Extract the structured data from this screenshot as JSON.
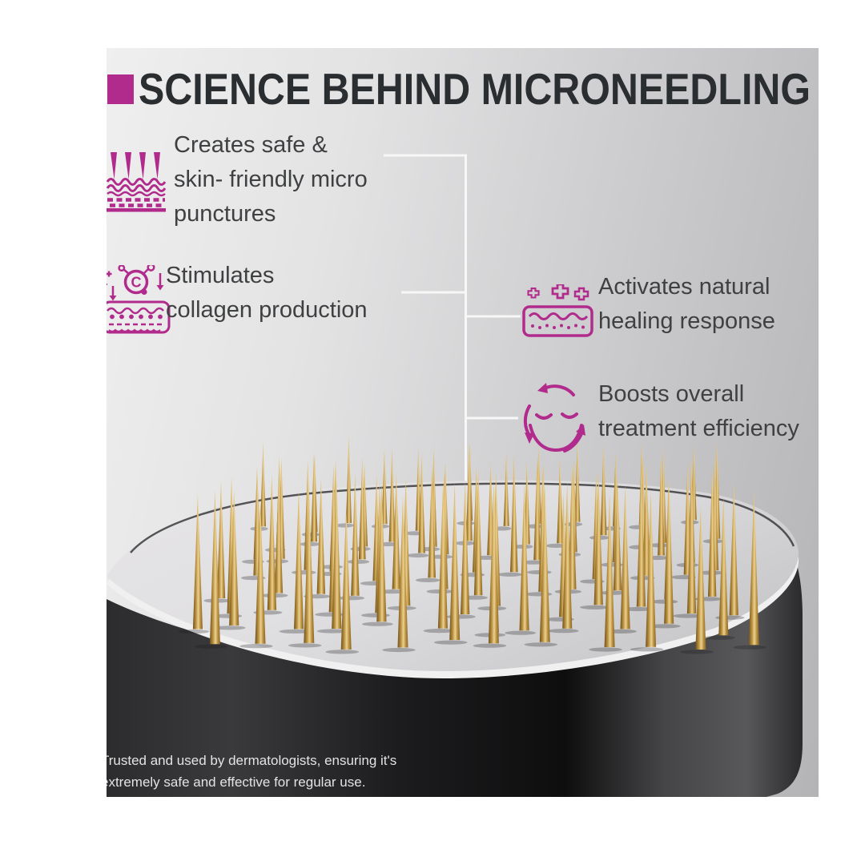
{
  "title": {
    "text": "SCIENCE BEHIND MICRONEEDLING"
  },
  "features": [
    {
      "icon": "microneedle-punctures-icon",
      "lines": [
        "Creates safe &",
        "skin- friendly micro",
        "punctures"
      ]
    },
    {
      "icon": "collagen-production-icon",
      "symbol": "C",
      "lines": [
        "Stimulates",
        "collagen production"
      ]
    },
    {
      "icon": "healing-response-icon",
      "lines": [
        "Activates natural",
        "healing response"
      ]
    },
    {
      "icon": "treatment-efficiency-icon",
      "lines": [
        "Boosts overall",
        "treatment efficiency"
      ]
    }
  ],
  "caption": {
    "lines": [
      "Trusted and used by dermatologists, ensuring it's",
      "extremely safe and effective for regular use."
    ]
  },
  "product": {
    "alt": "black microneedling stamp with gold needles"
  },
  "palette": {
    "accent": "#b12b8d",
    "title": "#2b2e31",
    "text": "#3f4042",
    "line": "#f7f7f7",
    "caption": "#e3e3e3",
    "gold_dark": "#6f521d",
    "gold_mid": "#b78e3e",
    "gold_light": "#ecd18f",
    "gold_edge": "#8a6526",
    "plate": "#e0dfe1",
    "plate2": "#c9c9cb",
    "rim": "#f0f0f1",
    "background_light": "#efefef",
    "background_dark": "#b4b4b6",
    "body_dark": "#1a1a1c"
  }
}
